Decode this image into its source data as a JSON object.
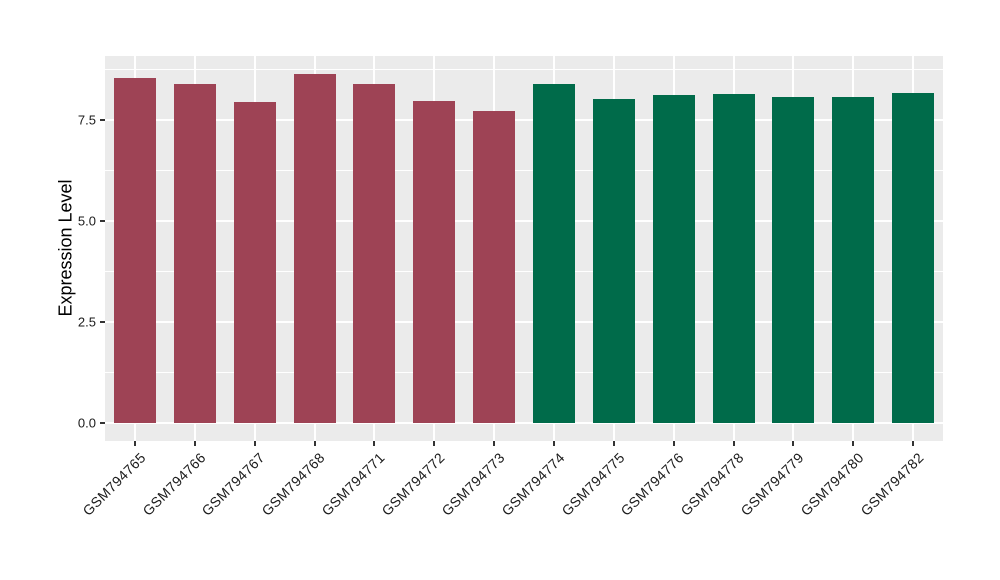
{
  "figure": {
    "background": "#FFFFFF",
    "panel_background": "#EBEBEB",
    "grid_color": "#FFFFFF",
    "tick_mark_color": "#333333",
    "axis_text_color": "#1A1A1A",
    "axis_title_color": "#000000"
  },
  "chart_data": {
    "type": "bar",
    "title": "",
    "xlabel": "",
    "ylabel": "Expression Level",
    "categories": [
      "GSM794765",
      "GSM794766",
      "GSM794767",
      "GSM794768",
      "GSM794771",
      "GSM794772",
      "GSM794773",
      "GSM794774",
      "GSM794775",
      "GSM794776",
      "GSM794778",
      "GSM794779",
      "GSM794780",
      "GSM794782"
    ],
    "values": [
      8.55,
      8.4,
      7.95,
      8.65,
      8.4,
      7.98,
      7.72,
      8.39,
      8.02,
      8.13,
      8.15,
      8.06,
      8.08,
      8.16
    ],
    "bar_colors": [
      "#9E4355",
      "#9E4355",
      "#9E4355",
      "#9E4355",
      "#9E4355",
      "#9E4355",
      "#9E4355",
      "#006B4A",
      "#006B4A",
      "#006B4A",
      "#006B4A",
      "#006B4A",
      "#006B4A",
      "#006B4A"
    ],
    "group_colors": {
      "left_group": "#9E4355",
      "right_group": "#006B4A"
    },
    "ylim": [
      0,
      9.08
    ],
    "ytick_labels": [
      "0.0",
      "2.5",
      "5.0",
      "7.5"
    ],
    "ytick_values": [
      0,
      2.5,
      5.0,
      7.5
    ],
    "minor_ytick_values": [
      1.25,
      3.75,
      6.25,
      8.75
    ],
    "grid": "major+minor horizontal, major vertical at category centers",
    "legend_position": "none",
    "x_label_rotation_deg": 45
  }
}
